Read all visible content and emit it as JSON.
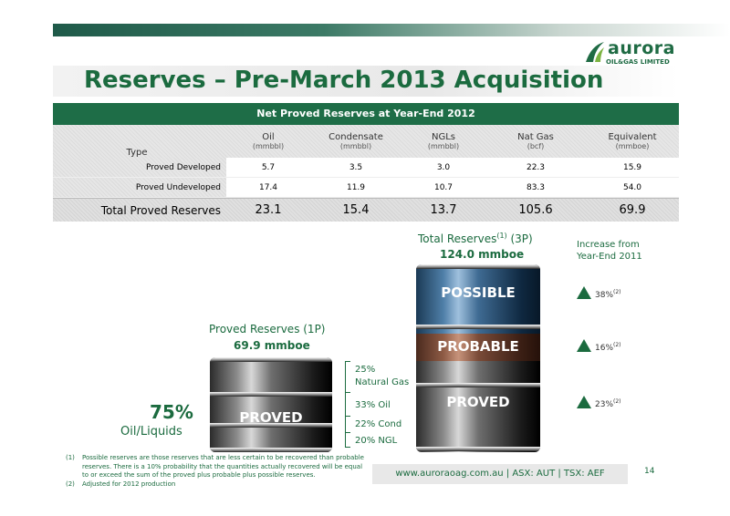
{
  "logo": {
    "word": "aurora",
    "sub": "OIL&GAS LIMITED"
  },
  "title": "Reserves – Pre-March 2013 Acquisition",
  "table": {
    "caption": "Net Proved Reserves at Year-End 2012",
    "type_label": "Type",
    "columns": [
      {
        "name": "Oil",
        "unit": "(mmbbl)"
      },
      {
        "name": "Condensate",
        "unit": "(mmbbl)"
      },
      {
        "name": "NGLs",
        "unit": "(mmbbl)"
      },
      {
        "name": "Nat Gas",
        "unit": "(bcf)"
      },
      {
        "name": "Equivalent",
        "unit": "(mmboe)"
      }
    ],
    "rows": [
      {
        "label": "Proved Developed",
        "values": [
          "5.7",
          "3.5",
          "3.0",
          "22.3",
          "15.9"
        ]
      },
      {
        "label": "Proved Undeveloped",
        "values": [
          "17.4",
          "11.9",
          "10.7",
          "83.3",
          "54.0"
        ]
      }
    ],
    "total": {
      "label": "Total Proved Reserves",
      "values": [
        "23.1",
        "15.4",
        "13.7",
        "105.6",
        "69.9"
      ]
    }
  },
  "proved": {
    "title": "Proved Reserves (1P)",
    "value": "69.9 mmboe",
    "barrel_label": "PROVED",
    "pct": "75%",
    "pct_label": "Oil/Liquids",
    "breakdown": [
      "25%",
      "Natural Gas",
      "33% Oil",
      "22% Cond",
      "20% NGL"
    ]
  },
  "total": {
    "title_pre": "Total Reserves",
    "title_sup": "(1)",
    "title_post": " (3P)",
    "value": "124.0 mmboe",
    "segments": [
      "POSSIBLE",
      "PROBABLE",
      "PROVED"
    ]
  },
  "increase": {
    "title": "Increase from Year-End 2011",
    "items": [
      {
        "pct": "38%",
        "note": "(2)"
      },
      {
        "pct": "16%",
        "note": "(2)"
      },
      {
        "pct": "23%",
        "note": "(2)"
      }
    ]
  },
  "footnotes": [
    {
      "num": "(1)",
      "text": "Possible reserves are those reserves that are less certain to be recovered than probable reserves.  There is a 10% probability that the quantities actually recovered will be equal to or exceed the sum of the proved plus probable plus possible reserves."
    },
    {
      "num": "(2)",
      "text": "Adjusted for 2012 production"
    }
  ],
  "footer": "www.auroraoag.com.au   |   ASX: AUT   |   TSX: AEF",
  "page": "14",
  "colors": {
    "brand_green": "#1b6b3f",
    "table_header": "#1e6d47"
  }
}
